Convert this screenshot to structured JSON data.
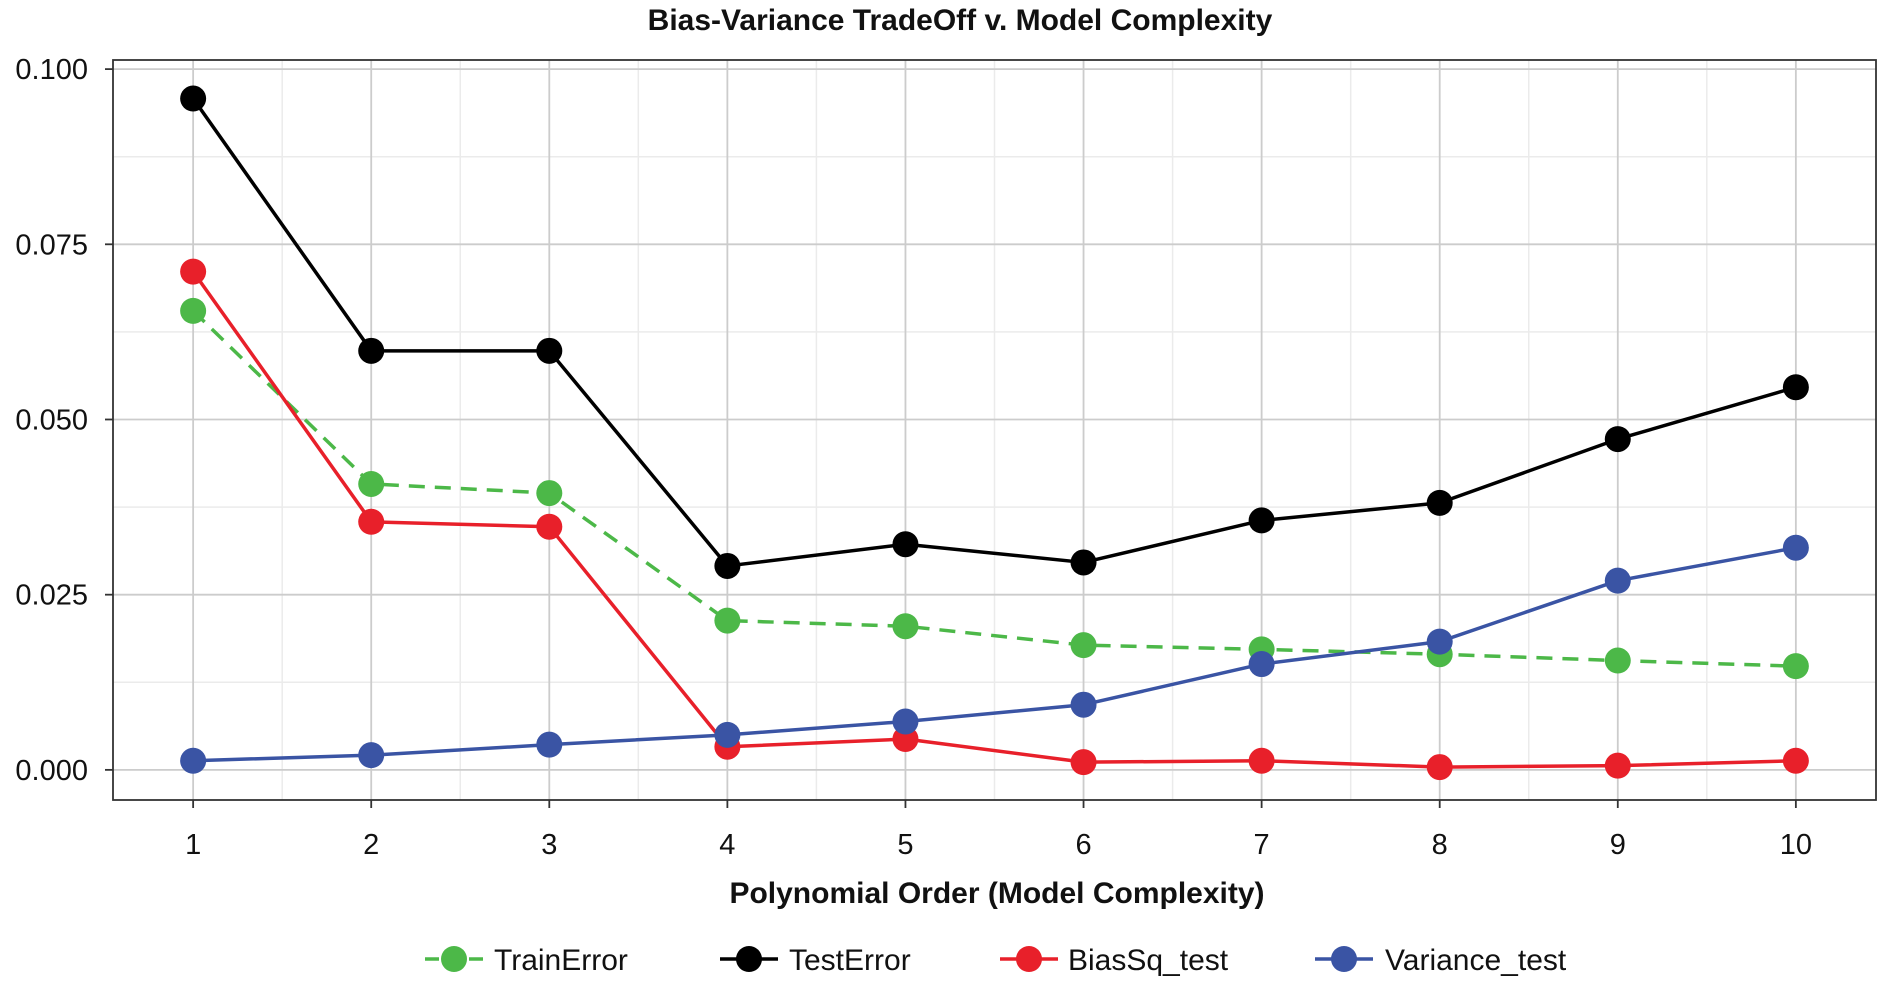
{
  "chart_data": {
    "type": "line",
    "title": "Bias-Variance TradeOff v. Model Complexity",
    "xlabel": "Polynomial Order (Model Complexity)",
    "ylabel": "",
    "x": [
      1,
      2,
      3,
      4,
      5,
      6,
      7,
      8,
      9,
      10
    ],
    "xlim": [
      0.55,
      10.45
    ],
    "ylim": [
      -0.0043,
      0.1013
    ],
    "x_ticks": [
      1,
      2,
      3,
      4,
      5,
      6,
      7,
      8,
      9,
      10
    ],
    "x_tick_labels": [
      "1",
      "2",
      "3",
      "4",
      "5",
      "6",
      "7",
      "8",
      "9",
      "10"
    ],
    "y_ticks": [
      0.0,
      0.025,
      0.05,
      0.075,
      0.1
    ],
    "y_tick_labels": [
      "0.000",
      "0.025",
      "0.050",
      "0.075",
      "0.100"
    ],
    "grid": true,
    "legend_position": "bottom",
    "series": [
      {
        "name": "TrainError",
        "color": "#4cb848",
        "dashed": true,
        "values": [
          0.0655,
          0.0408,
          0.0395,
          0.0213,
          0.0205,
          0.0178,
          0.0172,
          0.0165,
          0.0156,
          0.0148
        ]
      },
      {
        "name": "TestError",
        "color": "#000000",
        "dashed": false,
        "values": [
          0.0958,
          0.0598,
          0.0598,
          0.0291,
          0.0322,
          0.0296,
          0.0356,
          0.0381,
          0.0472,
          0.0546
        ]
      },
      {
        "name": "BiasSq_test",
        "color": "#e8202a",
        "dashed": false,
        "values": [
          0.0711,
          0.0354,
          0.0347,
          0.0033,
          0.0044,
          0.0011,
          0.0013,
          0.0004,
          0.0006,
          0.0013
        ]
      },
      {
        "name": "Variance_test",
        "color": "#3a54a4",
        "dashed": false,
        "values": [
          0.0013,
          0.0021,
          0.0036,
          0.005,
          0.0069,
          0.0093,
          0.0151,
          0.0183,
          0.027,
          0.0317
        ]
      }
    ]
  }
}
